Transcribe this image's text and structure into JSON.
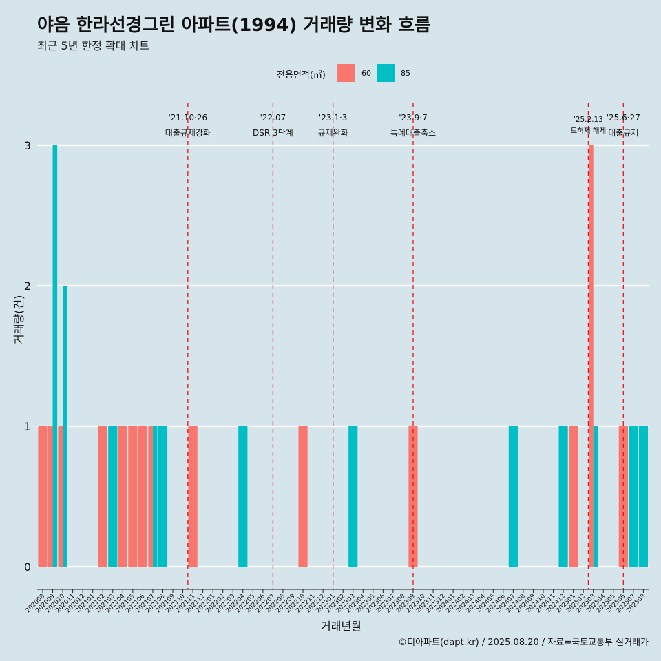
{
  "title": "야음 한라선경그린 아파트(1994) 거래량 변화 흐름",
  "subtitle": "최근 5년 한정 확대 차트",
  "legend": {
    "title": "전용면적(㎡)",
    "items": [
      {
        "label": "60",
        "color": "#f8766d"
      },
      {
        "label": "85",
        "color": "#00bfc4"
      }
    ]
  },
  "source": "©디아파트(dapt.kr) / 2025.08.20 / 자료=국토교통부 실거래가",
  "chart_data": {
    "type": "bar",
    "title": "야음 한라선경그린 아파트(1994) 거래량 변화 흐름",
    "xlabel": "거래년월",
    "ylabel": "거래량(건)",
    "ylim": [
      0,
      3
    ],
    "yticks": [
      0,
      1,
      2,
      3
    ],
    "grid": true,
    "legend_position": "top",
    "categories": [
      "202008",
      "202009",
      "202010",
      "202011",
      "202012",
      "202101",
      "202102",
      "202103",
      "202104",
      "202105",
      "202106",
      "202107",
      "202108",
      "202109",
      "202110",
      "202111",
      "202112",
      "202201",
      "202202",
      "202203",
      "202204",
      "202205",
      "202206",
      "202207",
      "202208",
      "202209",
      "202210",
      "202211",
      "202212",
      "202301",
      "202302",
      "202303",
      "202304",
      "202305",
      "202306",
      "202307",
      "202308",
      "202309",
      "202310",
      "202311",
      "202312",
      "202401",
      "202402",
      "202403",
      "202404",
      "202405",
      "202406",
      "202407",
      "202408",
      "202409",
      "202410",
      "202411",
      "202412",
      "202501",
      "202502",
      "202503",
      "202504",
      "202505",
      "202506",
      "202507",
      "202508"
    ],
    "bars": [
      {
        "month": "202008",
        "series": "60",
        "value": 1
      },
      {
        "month": "202009",
        "series": "60",
        "value": 1
      },
      {
        "month": "202009",
        "series": "85",
        "value": 3
      },
      {
        "month": "202010",
        "series": "60",
        "value": 1
      },
      {
        "month": "202010",
        "series": "85",
        "value": 2
      },
      {
        "month": "202102",
        "series": "60",
        "value": 1
      },
      {
        "month": "202103",
        "series": "85",
        "value": 1
      },
      {
        "month": "202104",
        "series": "60",
        "value": 1
      },
      {
        "month": "202105",
        "series": "60",
        "value": 1
      },
      {
        "month": "202106",
        "series": "60",
        "value": 1
      },
      {
        "month": "202107",
        "series": "60",
        "value": 1
      },
      {
        "month": "202107",
        "series": "85",
        "value": 1
      },
      {
        "month": "202108",
        "series": "85",
        "value": 1
      },
      {
        "month": "202111",
        "series": "60",
        "value": 1
      },
      {
        "month": "202204",
        "series": "85",
        "value": 1
      },
      {
        "month": "202210",
        "series": "60",
        "value": 1
      },
      {
        "month": "202303",
        "series": "85",
        "value": 1
      },
      {
        "month": "202309",
        "series": "60",
        "value": 1
      },
      {
        "month": "202407",
        "series": "85",
        "value": 1
      },
      {
        "month": "202412",
        "series": "85",
        "value": 1
      },
      {
        "month": "202501",
        "series": "60",
        "value": 1
      },
      {
        "month": "202503",
        "series": "60",
        "value": 3
      },
      {
        "month": "202503",
        "series": "85",
        "value": 1
      },
      {
        "month": "202506",
        "series": "60",
        "value": 1
      },
      {
        "month": "202507",
        "series": "85",
        "value": 1
      },
      {
        "month": "202508",
        "series": "85",
        "value": 1
      }
    ],
    "events": [
      {
        "label_top": "'21.10·26",
        "label_bottom": "대출규제강화",
        "position": "between 202110 and 202111"
      },
      {
        "label_top": "'22.07",
        "label_bottom": "DSR 3단계",
        "position": "202207"
      },
      {
        "label_top": "'23.1·3",
        "label_bottom": "규제완화",
        "position": "202301"
      },
      {
        "label_top": "'23.9·7",
        "label_bottom": "특례대출축소",
        "position": "202309"
      },
      {
        "label_top": "'25.2.13",
        "label_bottom": "토허제 해제",
        "position": "between 202502 and 202503"
      },
      {
        "label_top": "'25.6·27",
        "label_bottom": "대출규제",
        "position": "202506"
      }
    ]
  }
}
